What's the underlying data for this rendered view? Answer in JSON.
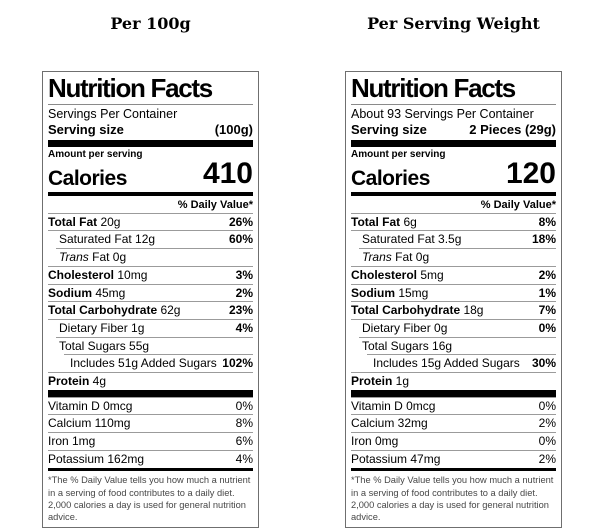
{
  "colors": {
    "text": "#000000",
    "bars": "#000000",
    "separators": "#9b9b9b",
    "label_border": "#6f6f6f",
    "background": "#ffffff"
  },
  "titles": {
    "left": "Per 100g",
    "right": "Per Serving Weight"
  },
  "labels": [
    {
      "heading": "Nutrition Facts",
      "servings_per_container": "Servings Per Container",
      "serving_size": {
        "label": "Serving size",
        "value": "(100g)"
      },
      "amount_per_serving": "Amount per serving",
      "calories": {
        "label": "Calories",
        "value": "410"
      },
      "daily_value_header": "% Daily Value*",
      "nutrients": [
        {
          "bold": "Total Fat",
          "text": " 20g",
          "dv": "26%",
          "dv_bold": true,
          "indent": 0,
          "sep": 0
        },
        {
          "text": "Saturated Fat 12g",
          "dv": "60%",
          "dv_bold": true,
          "indent": 1,
          "sep": 0
        },
        {
          "italic": "Trans",
          "text": " Fat 0g",
          "dv": "",
          "indent": 1,
          "sep": 1
        },
        {
          "bold": "Cholesterol",
          "text": " 10mg",
          "dv": "3%",
          "dv_bold": true,
          "indent": 0,
          "sep": 0
        },
        {
          "bold": "Sodium",
          "text": " 45mg",
          "dv": "2%",
          "dv_bold": true,
          "indent": 0,
          "sep": 0
        },
        {
          "bold": "Total Carbohydrate",
          "text": " 62g",
          "dv": "23%",
          "dv_bold": true,
          "indent": 0,
          "sep": 0
        },
        {
          "text": "Dietary Fiber 1g",
          "dv": "4%",
          "dv_bold": true,
          "indent": 1,
          "sep": 0
        },
        {
          "text": "Total Sugars 55g",
          "dv": "",
          "indent": 1,
          "sep": 1
        },
        {
          "text": "Includes 51g Added Sugars",
          "dv": "102%",
          "dv_bold": true,
          "indent": 2,
          "sep": 2
        },
        {
          "bold": "Protein",
          "text": " 4g",
          "dv": "",
          "indent": 0,
          "sep": 0
        }
      ],
      "vitamins": [
        {
          "text": "Vitamin D 0mcg",
          "dv": "0%"
        },
        {
          "text": "Calcium 110mg",
          "dv": "8%"
        },
        {
          "text": "Iron 1mg",
          "dv": "6%"
        },
        {
          "text": "Potassium 162mg",
          "dv": "4%"
        }
      ],
      "footnote": "*The % Daily Value tells you how much a nutrient in a serving of food contributes to a daily diet. 2,000 calories a day is used for general nutrition advice."
    },
    {
      "heading": "Nutrition Facts",
      "servings_per_container": "About 93 Servings Per Container",
      "serving_size": {
        "label": "Serving size",
        "value": "2 Pieces (29g)"
      },
      "amount_per_serving": "Amount per serving",
      "calories": {
        "label": "Calories",
        "value": "120"
      },
      "daily_value_header": "% Daily Value*",
      "nutrients": [
        {
          "bold": "Total Fat",
          "text": " 6g",
          "dv": "8%",
          "dv_bold": true,
          "indent": 0,
          "sep": 0
        },
        {
          "text": "Saturated Fat 3.5g",
          "dv": "18%",
          "dv_bold": true,
          "indent": 1,
          "sep": 0
        },
        {
          "italic": "Trans",
          "text": " Fat 0g",
          "dv": "",
          "indent": 1,
          "sep": 1
        },
        {
          "bold": "Cholesterol",
          "text": " 5mg",
          "dv": "2%",
          "dv_bold": true,
          "indent": 0,
          "sep": 0
        },
        {
          "bold": "Sodium",
          "text": " 15mg",
          "dv": "1%",
          "dv_bold": true,
          "indent": 0,
          "sep": 0
        },
        {
          "bold": "Total Carbohydrate",
          "text": " 18g",
          "dv": "7%",
          "dv_bold": true,
          "indent": 0,
          "sep": 0
        },
        {
          "text": "Dietary Fiber 0g",
          "dv": "0%",
          "dv_bold": true,
          "indent": 1,
          "sep": 0
        },
        {
          "text": "Total Sugars 16g",
          "dv": "",
          "indent": 1,
          "sep": 1
        },
        {
          "text": "Includes 15g Added Sugars",
          "dv": "30%",
          "dv_bold": true,
          "indent": 2,
          "sep": 2
        },
        {
          "bold": "Protein",
          "text": " 1g",
          "dv": "",
          "indent": 0,
          "sep": 0
        }
      ],
      "vitamins": [
        {
          "text": "Vitamin D 0mcg",
          "dv": "0%"
        },
        {
          "text": "Calcium 32mg",
          "dv": "2%"
        },
        {
          "text": "Iron 0mg",
          "dv": "0%"
        },
        {
          "text": "Potassium 47mg",
          "dv": "2%"
        }
      ],
      "footnote": "*The % Daily Value tells you how much a nutrient in a serving of food contributes to a daily diet. 2,000 calories a day is used for general nutrition advice."
    }
  ]
}
